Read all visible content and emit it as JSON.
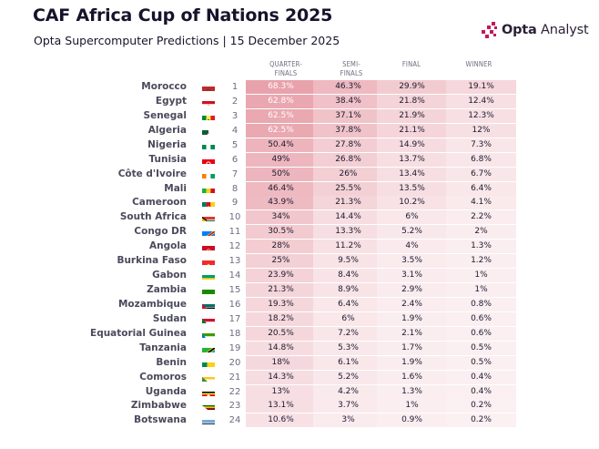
{
  "header": {
    "title": "CAF Africa Cup of Nations 2025",
    "subtitle": "Opta Supercomputer Predictions | 15 December 2025"
  },
  "brand": {
    "name_bold": "Opta",
    "name_rest": " Analyst",
    "icon": "opta-pixel-logo-icon",
    "color": "#c2185b"
  },
  "colors": {
    "cell_high": "#e8a0aa",
    "cell_low": "#fbf0f2",
    "cell_base": "#f7f7f9"
  },
  "chart_data": {
    "type": "table",
    "columns": [
      "QUARTER-\nFINALS",
      "SEMI-\nFINALS",
      "FINAL",
      "WINNER"
    ],
    "rows": [
      {
        "team": "Morocco",
        "rank": "1",
        "values": [
          "68.3%",
          "46.3%",
          "29.9%",
          "19.1%"
        ],
        "flag": "morocco"
      },
      {
        "team": "Egypt",
        "rank": "2",
        "values": [
          "62.8%",
          "38.4%",
          "21.8%",
          "12.4%"
        ],
        "flag": "egypt"
      },
      {
        "team": "Senegal",
        "rank": "3",
        "values": [
          "62.5%",
          "37.1%",
          "21.9%",
          "12.3%"
        ],
        "flag": "senegal"
      },
      {
        "team": "Algeria",
        "rank": "4",
        "values": [
          "62.5%",
          "37.8%",
          "21.1%",
          "12%"
        ],
        "flag": "algeria"
      },
      {
        "team": "Nigeria",
        "rank": "5",
        "values": [
          "50.4%",
          "27.8%",
          "14.9%",
          "7.3%"
        ],
        "flag": "nigeria"
      },
      {
        "team": "Tunisia",
        "rank": "6",
        "values": [
          "49%",
          "26.8%",
          "13.7%",
          "6.8%"
        ],
        "flag": "tunisia"
      },
      {
        "team": "Côte d'Ivoire",
        "rank": "7",
        "values": [
          "50%",
          "26%",
          "13.4%",
          "6.7%"
        ],
        "flag": "cote-divoire"
      },
      {
        "team": "Mali",
        "rank": "8",
        "values": [
          "46.4%",
          "25.5%",
          "13.5%",
          "6.4%"
        ],
        "flag": "mali"
      },
      {
        "team": "Cameroon",
        "rank": "9",
        "values": [
          "43.9%",
          "21.3%",
          "10.2%",
          "4.1%"
        ],
        "flag": "cameroon"
      },
      {
        "team": "South Africa",
        "rank": "10",
        "values": [
          "34%",
          "14.4%",
          "6%",
          "2.2%"
        ],
        "flag": "south-africa"
      },
      {
        "team": "Congo DR",
        "rank": "11",
        "values": [
          "30.5%",
          "13.3%",
          "5.2%",
          "2%"
        ],
        "flag": "congo-dr"
      },
      {
        "team": "Angola",
        "rank": "12",
        "values": [
          "28%",
          "11.2%",
          "4%",
          "1.3%"
        ],
        "flag": "angola"
      },
      {
        "team": "Burkina Faso",
        "rank": "13",
        "values": [
          "25%",
          "9.5%",
          "3.5%",
          "1.2%"
        ],
        "flag": "burkina-faso"
      },
      {
        "team": "Gabon",
        "rank": "14",
        "values": [
          "23.9%",
          "8.4%",
          "3.1%",
          "1%"
        ],
        "flag": "gabon"
      },
      {
        "team": "Zambia",
        "rank": "15",
        "values": [
          "21.3%",
          "8.9%",
          "2.9%",
          "1%"
        ],
        "flag": "zambia"
      },
      {
        "team": "Mozambique",
        "rank": "16",
        "values": [
          "19.3%",
          "6.4%",
          "2.4%",
          "0.8%"
        ],
        "flag": "mozambique"
      },
      {
        "team": "Sudan",
        "rank": "17",
        "values": [
          "18.2%",
          "6%",
          "1.9%",
          "0.6%"
        ],
        "flag": "sudan"
      },
      {
        "team": "Equatorial Guinea",
        "rank": "18",
        "values": [
          "20.5%",
          "7.2%",
          "2.1%",
          "0.6%"
        ],
        "flag": "equatorial-guinea"
      },
      {
        "team": "Tanzania",
        "rank": "19",
        "values": [
          "14.8%",
          "5.3%",
          "1.7%",
          "0.5%"
        ],
        "flag": "tanzania"
      },
      {
        "team": "Benin",
        "rank": "20",
        "values": [
          "18%",
          "6.1%",
          "1.9%",
          "0.5%"
        ],
        "flag": "benin"
      },
      {
        "team": "Comoros",
        "rank": "21",
        "values": [
          "14.3%",
          "5.2%",
          "1.6%",
          "0.4%"
        ],
        "flag": "comoros"
      },
      {
        "team": "Uganda",
        "rank": "22",
        "values": [
          "13%",
          "4.2%",
          "1.3%",
          "0.4%"
        ],
        "flag": "uganda"
      },
      {
        "team": "Zimbabwe",
        "rank": "23",
        "values": [
          "13.1%",
          "3.7%",
          "1%",
          "0.2%"
        ],
        "flag": "zimbabwe"
      },
      {
        "team": "Botswana",
        "rank": "24",
        "values": [
          "10.6%",
          "3%",
          "0.9%",
          "0.2%"
        ],
        "flag": "botswana"
      }
    ]
  }
}
